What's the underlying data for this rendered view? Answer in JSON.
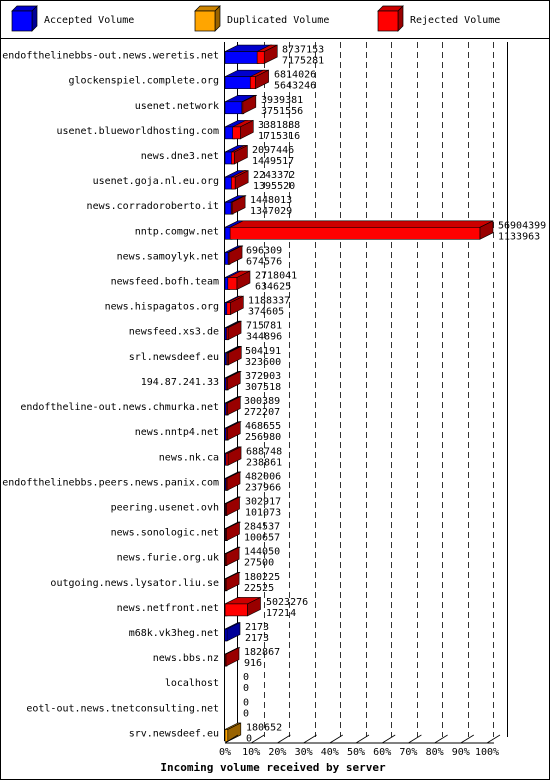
{
  "chart_data": {
    "type": "bar",
    "orientation": "horizontal",
    "stacked": true,
    "title": "",
    "xlabel": "Incoming volume received by server",
    "ylabel": "",
    "xlim": [
      0,
      100
    ],
    "x_unit": "%",
    "x_tick_labels": [
      "0%",
      "10%",
      "20%",
      "30%",
      "40%",
      "50%",
      "60%",
      "70%",
      "80%",
      "90%",
      "100%"
    ],
    "grid": true,
    "legend_position": "top",
    "legend": [
      {
        "name": "Accepted Volume",
        "color": "#0000ff"
      },
      {
        "name": "Duplicated Volume",
        "color": "#ffa500"
      },
      {
        "name": "Rejected Volume",
        "color": "#ff0000"
      }
    ],
    "categories": [
      "endofthelinebbs-out.news.weretis.net",
      "glockenspiel.complete.org",
      "usenet.network",
      "usenet.blueworldhosting.com",
      "news.dne3.net",
      "usenet.goja.nl.eu.org",
      "news.corradoroberto.it",
      "nntp.comgw.net",
      "news.samoylyk.net",
      "newsfeed.bofh.team",
      "news.hispagatos.org",
      "newsfeed.xs3.de",
      "srl.newsdeef.eu",
      "194.87.241.33",
      "endoftheline-out.news.chmurka.net",
      "news.nntp4.net",
      "news.nk.ca",
      "endofthelinebbs.peers.news.panix.com",
      "peering.usenet.ovh",
      "news.sonologic.net",
      "news.furie.org.uk",
      "outgoing.news.lysator.liu.se",
      "news.netfront.net",
      "m68k.vk3heg.net",
      "news.bbs.nz",
      "localhost",
      "eotl-out.news.tnetconsulting.net",
      "srv.newsdeef.eu"
    ],
    "value_labels": [
      [
        "8737153",
        "7175281"
      ],
      [
        "6814026",
        "5643246"
      ],
      [
        "3939381",
        "3751556"
      ],
      [
        "3381888",
        "1715316"
      ],
      [
        "2097446",
        "1449517"
      ],
      [
        "2243372",
        "1395520"
      ],
      [
        "1448013",
        "1347029"
      ],
      [
        "56904399",
        "1133963"
      ],
      [
        "696309",
        "674576"
      ],
      [
        "2718041",
        "634625"
      ],
      [
        "1188337",
        "374605"
      ],
      [
        "715781",
        "344896"
      ],
      [
        "504191",
        "323600"
      ],
      [
        "372903",
        "307518"
      ],
      [
        "300389",
        "272207"
      ],
      [
        "468655",
        "256980"
      ],
      [
        "688748",
        "238861"
      ],
      [
        "482006",
        "237966"
      ],
      [
        "302917",
        "101073"
      ],
      [
        "284537",
        "100657"
      ],
      [
        "144050",
        "27500"
      ],
      [
        "180225",
        "22525"
      ],
      [
        "5023276",
        "17214"
      ],
      [
        "2173",
        "2173"
      ],
      [
        "182867",
        "916"
      ],
      [
        "0",
        "0"
      ],
      [
        "0",
        "0"
      ],
      [
        "180652",
        "0"
      ]
    ],
    "series": [
      {
        "name": "Accepted Volume",
        "values": [
          12.6,
          9.9,
          6.6,
          3.0,
          2.5,
          2.5,
          2.4,
          2.0,
          1.2,
          1.1,
          0.7,
          0.6,
          0.6,
          0.5,
          0.5,
          0.5,
          0.4,
          0.4,
          0.2,
          0.2,
          0.05,
          0.04,
          0.03,
          0.004,
          0.002,
          0,
          0,
          0
        ]
      },
      {
        "name": "Duplicated Volume",
        "values": [
          0,
          0,
          0,
          0,
          0,
          0,
          0,
          0,
          0,
          0,
          0,
          0,
          0.3,
          0,
          0,
          0,
          0,
          0,
          0,
          0,
          0,
          0,
          0,
          0,
          0,
          0,
          0,
          0.32
        ]
      },
      {
        "name": "Rejected Volume",
        "values": [
          2.8,
          2.1,
          0.3,
          3.0,
          1.2,
          1.5,
          0.2,
          98.0,
          0.04,
          3.6,
          1.4,
          0.6,
          0.02,
          0.1,
          0.05,
          0.4,
          0.8,
          0.4,
          0.4,
          0.3,
          0.2,
          0.3,
          8.8,
          0,
          0.3,
          0,
          0,
          0
        ]
      }
    ]
  }
}
